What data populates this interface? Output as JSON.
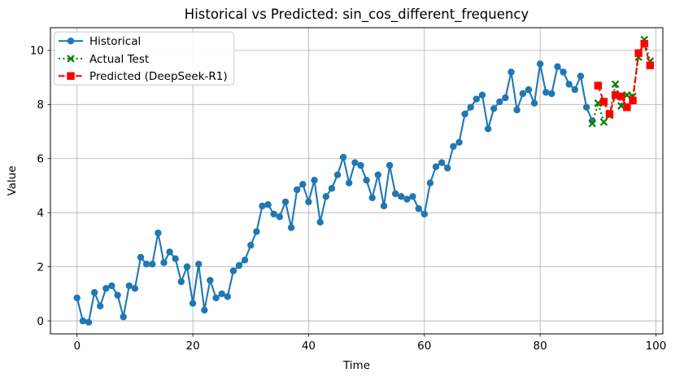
{
  "chart_data": {
    "type": "line",
    "title": "Historical vs Predicted: sin_cos_different_frequency",
    "xlabel": "Time",
    "ylabel": "Value",
    "x_ticks": [
      0,
      20,
      40,
      60,
      80,
      100
    ],
    "y_ticks": [
      0,
      2,
      4,
      6,
      8,
      10
    ],
    "xlim": [
      -4.6,
      101.2
    ],
    "ylim": [
      -0.48,
      10.84
    ],
    "grid": true,
    "grid_color": "#b0b0b0",
    "spine_color": "#000000",
    "background_color": "#ffffff",
    "legend_position": "upper left",
    "series": [
      {
        "name": "Historical",
        "color": "#1f77b4",
        "line_style": "solid",
        "marker": "circle",
        "x_start": 0,
        "x": [
          0,
          1,
          2,
          3,
          4,
          5,
          6,
          7,
          8,
          9,
          10,
          11,
          12,
          13,
          14,
          15,
          16,
          17,
          18,
          19,
          20,
          21,
          22,
          23,
          24,
          25,
          26,
          27,
          28,
          29,
          30,
          31,
          32,
          33,
          34,
          35,
          36,
          37,
          38,
          39,
          40,
          41,
          42,
          43,
          44,
          45,
          46,
          47,
          48,
          49,
          50,
          51,
          52,
          53,
          54,
          55,
          56,
          57,
          58,
          59,
          60,
          61,
          62,
          63,
          64,
          65,
          66,
          67,
          68,
          69,
          70,
          71,
          72,
          73,
          74,
          75,
          76,
          77,
          78,
          79,
          80,
          81,
          82,
          83,
          84,
          85,
          86,
          87,
          88,
          89
        ],
        "values": [
          0.85,
          0.0,
          -0.05,
          1.05,
          0.55,
          1.2,
          1.3,
          0.95,
          0.15,
          1.3,
          1.2,
          2.35,
          2.1,
          2.1,
          3.25,
          2.15,
          2.55,
          2.3,
          1.45,
          2.0,
          0.65,
          2.1,
          0.4,
          1.5,
          0.85,
          1.0,
          0.9,
          1.85,
          2.05,
          2.25,
          2.8,
          3.3,
          4.25,
          4.3,
          3.95,
          3.85,
          4.4,
          3.45,
          4.85,
          5.05,
          4.4,
          5.2,
          3.65,
          4.6,
          4.9,
          5.4,
          6.05,
          5.1,
          5.85,
          5.75,
          5.2,
          4.55,
          5.4,
          4.25,
          5.75,
          4.7,
          4.6,
          4.5,
          4.6,
          4.15,
          3.95,
          5.1,
          5.7,
          5.85,
          5.65,
          6.45,
          6.6,
          7.65,
          7.9,
          8.2,
          8.35,
          7.1,
          7.85,
          8.1,
          8.25,
          9.2,
          7.8,
          8.4,
          8.55,
          8.05,
          9.5,
          8.45,
          8.4,
          9.4,
          9.2,
          8.75,
          8.55,
          9.05,
          7.9,
          7.4
        ]
      },
      {
        "name": "Actual Test",
        "color": "#008000",
        "line_style": "dotted",
        "marker": "x",
        "x": [
          89,
          90,
          91,
          92,
          93,
          94,
          95,
          96,
          97,
          98,
          99
        ],
        "values": [
          7.3,
          8.05,
          7.35,
          7.6,
          8.75,
          7.95,
          8.35,
          8.3,
          9.75,
          10.4,
          9.6
        ]
      },
      {
        "name": "Predicted (DeepSeek-R1)",
        "color": "#ff0000",
        "line_style": "dashed",
        "marker": "square",
        "x": [
          90,
          91,
          92,
          93,
          94,
          95,
          96,
          97,
          98,
          99
        ],
        "values": [
          8.7,
          8.1,
          7.65,
          8.35,
          8.3,
          7.9,
          8.15,
          9.9,
          10.25,
          9.45
        ]
      }
    ]
  },
  "legend": {
    "items": [
      {
        "label": "Historical"
      },
      {
        "label": "Actual Test"
      },
      {
        "label": "Predicted (DeepSeek-R1)"
      }
    ]
  }
}
